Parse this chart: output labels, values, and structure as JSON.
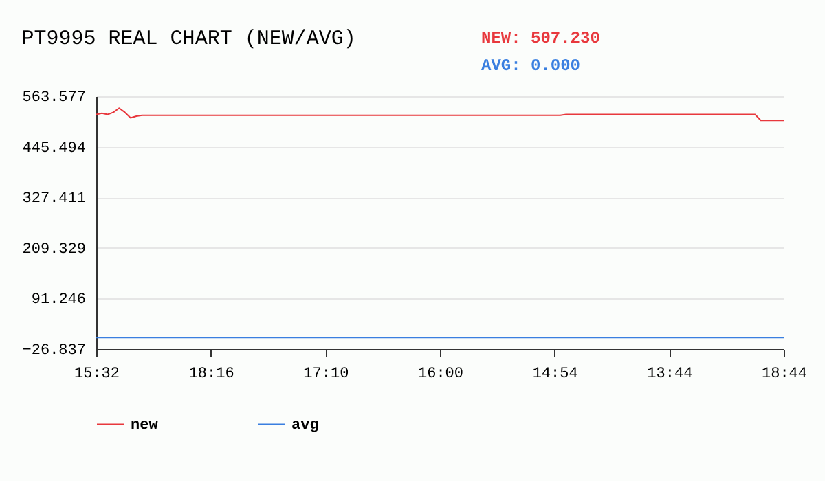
{
  "chart_data": {
    "type": "line",
    "title": "PT9995 REAL CHART (NEW/AVG)",
    "annotations": [
      "NEW: 507.230",
      "AVG: 0.000"
    ],
    "categories": [
      "15:32",
      null,
      null,
      null,
      null,
      null,
      null,
      null,
      null,
      null,
      null,
      null,
      null,
      null,
      null,
      null,
      null,
      null,
      null,
      null,
      "18:16",
      null,
      null,
      null,
      null,
      null,
      null,
      null,
      null,
      null,
      null,
      null,
      null,
      null,
      null,
      null,
      null,
      null,
      null,
      null,
      "17:10",
      null,
      null,
      null,
      null,
      null,
      null,
      null,
      null,
      null,
      null,
      null,
      null,
      null,
      null,
      null,
      null,
      null,
      null,
      null,
      "16:00",
      null,
      null,
      null,
      null,
      null,
      null,
      null,
      null,
      null,
      null,
      null,
      null,
      null,
      null,
      null,
      null,
      null,
      null,
      null,
      "14:54",
      null,
      null,
      null,
      null,
      null,
      null,
      null,
      null,
      null,
      null,
      null,
      null,
      null,
      null,
      null,
      null,
      null,
      null,
      null,
      "13:44",
      null,
      null,
      null,
      null,
      null,
      null,
      null,
      null,
      null,
      null,
      null,
      null,
      null,
      null,
      null,
      null,
      null,
      null,
      null,
      "18:44"
    ],
    "series": [
      {
        "name": "new",
        "color": "#e8383d",
        "values": [
          521,
          524,
          521,
          526,
          536,
          526,
          513,
          517,
          519,
          519,
          519,
          519,
          519,
          519,
          519,
          519,
          519,
          519,
          519,
          519,
          519,
          519,
          519,
          519,
          519,
          519,
          519,
          519,
          519,
          519,
          519,
          519,
          519,
          519,
          519,
          519,
          519,
          519,
          519,
          519,
          519,
          519,
          519,
          519,
          519,
          519,
          519,
          519,
          519,
          519,
          519,
          519,
          519,
          519,
          519,
          519,
          519,
          519,
          519,
          519,
          519,
          519,
          519,
          519,
          519,
          519,
          519,
          519,
          519,
          519,
          519,
          519,
          519,
          519,
          519,
          519,
          519,
          519,
          519,
          519,
          519,
          519,
          521,
          521,
          521,
          521,
          521,
          521,
          521,
          521,
          521,
          521,
          521,
          521,
          521,
          521,
          521,
          521,
          521,
          521,
          521,
          521,
          521,
          521,
          521,
          521,
          521,
          521,
          521,
          521,
          521,
          521,
          521,
          521,
          521,
          521,
          507,
          507,
          507,
          507,
          507
        ]
      },
      {
        "name": "avg",
        "color": "#3a7fe0",
        "values": [
          0,
          0,
          0,
          0,
          0,
          0,
          0,
          0,
          0,
          0,
          0,
          0,
          0,
          0,
          0,
          0,
          0,
          0,
          0,
          0,
          0,
          0,
          0,
          0,
          0,
          0,
          0,
          0,
          0,
          0,
          0,
          0,
          0,
          0,
          0,
          0,
          0,
          0,
          0,
          0,
          0,
          0,
          0,
          0,
          0,
          0,
          0,
          0,
          0,
          0,
          0,
          0,
          0,
          0,
          0,
          0,
          0,
          0,
          0,
          0,
          0,
          0,
          0,
          0,
          0,
          0,
          0,
          0,
          0,
          0,
          0,
          0,
          0,
          0,
          0,
          0,
          0,
          0,
          0,
          0,
          0,
          0,
          0,
          0,
          0,
          0,
          0,
          0,
          0,
          0,
          0,
          0,
          0,
          0,
          0,
          0,
          0,
          0,
          0,
          0,
          0,
          0,
          0,
          0,
          0,
          0,
          0,
          0,
          0,
          0,
          0,
          0,
          0,
          0,
          0,
          0,
          0,
          0,
          0,
          0,
          0
        ]
      }
    ],
    "ylim": [
      -26.837,
      563.577
    ],
    "yticks": [
      563.577,
      445.494,
      327.411,
      209.329,
      91.246,
      -26.837
    ],
    "grid": "y",
    "legend": "bottom",
    "marker": "none",
    "line_style": "solid"
  }
}
